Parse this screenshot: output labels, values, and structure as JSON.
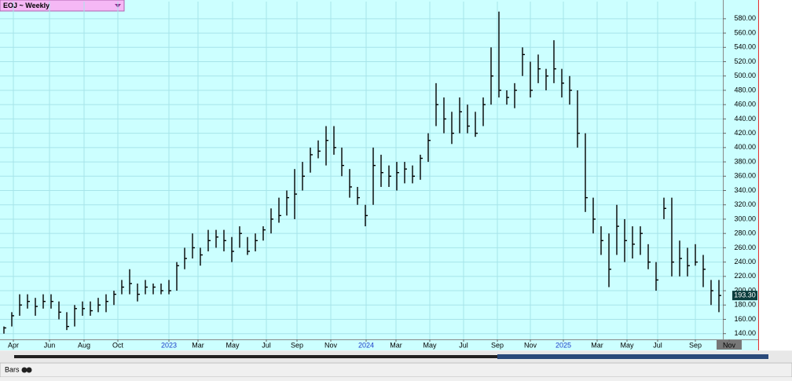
{
  "chart_data": {
    "type": "ohlc",
    "title": "EOJ ~ Weekly",
    "mode_label": "Bars",
    "color": "#000000",
    "grid": true,
    "x": [
      0,
      2,
      4,
      6,
      8,
      10,
      12,
      14,
      16,
      18,
      20,
      22,
      24,
      26,
      28,
      30,
      32,
      34,
      36,
      38,
      40,
      42,
      44,
      46,
      48,
      50,
      52,
      54,
      56,
      58,
      60,
      62,
      64,
      66,
      68,
      70,
      72,
      74,
      76,
      78,
      80,
      82,
      84,
      86,
      88,
      90,
      92,
      94,
      96,
      98,
      100,
      102,
      104,
      106,
      108,
      110,
      112,
      114,
      116,
      118,
      120,
      122,
      124,
      126,
      128,
      130,
      132,
      134,
      136,
      138,
      140,
      142,
      144,
      146,
      148,
      150,
      152,
      154,
      156,
      158,
      160,
      162,
      164,
      166,
      168,
      170,
      172,
      174,
      176,
      178,
      180,
      182
    ],
    "high": [
      150,
      170,
      195,
      195,
      190,
      195,
      195,
      185,
      170,
      180,
      185,
      185,
      190,
      195,
      200,
      215,
      230,
      210,
      215,
      210,
      210,
      215,
      240,
      260,
      280,
      260,
      285,
      285,
      285,
      275,
      290,
      275,
      280,
      290,
      315,
      330,
      340,
      370,
      380,
      400,
      410,
      430,
      430,
      400,
      370,
      345,
      320,
      400,
      390,
      375,
      380,
      380,
      375,
      390,
      420,
      490,
      470,
      450,
      470,
      460,
      450,
      470,
      540,
      590,
      480,
      490,
      540,
      520,
      530,
      510,
      550,
      510,
      500,
      480,
      420,
      330,
      290,
      280,
      320,
      300,
      290,
      290,
      265,
      240,
      330,
      330,
      270,
      260,
      265,
      250,
      215,
      215
    ],
    "low": [
      140,
      150,
      165,
      175,
      165,
      175,
      175,
      160,
      145,
      150,
      165,
      165,
      170,
      170,
      180,
      195,
      195,
      185,
      195,
      195,
      195,
      195,
      200,
      230,
      245,
      235,
      255,
      260,
      255,
      240,
      260,
      250,
      255,
      270,
      280,
      295,
      305,
      300,
      340,
      365,
      385,
      375,
      390,
      360,
      330,
      320,
      290,
      320,
      345,
      345,
      340,
      350,
      350,
      355,
      380,
      430,
      420,
      405,
      420,
      420,
      415,
      430,
      460,
      470,
      460,
      455,
      500,
      470,
      490,
      480,
      490,
      470,
      460,
      400,
      310,
      280,
      250,
      205,
      250,
      240,
      245,
      250,
      230,
      200,
      300,
      220,
      220,
      220,
      235,
      205,
      180,
      170
    ],
    "close": [
      148,
      165,
      180,
      185,
      178,
      185,
      185,
      170,
      150,
      175,
      175,
      172,
      180,
      185,
      195,
      205,
      210,
      195,
      205,
      205,
      200,
      200,
      235,
      245,
      260,
      250,
      270,
      275,
      270,
      255,
      280,
      255,
      270,
      285,
      300,
      305,
      330,
      335,
      360,
      390,
      395,
      410,
      400,
      375,
      345,
      330,
      305,
      375,
      365,
      360,
      365,
      370,
      360,
      385,
      410,
      460,
      440,
      420,
      450,
      430,
      420,
      460,
      500,
      480,
      470,
      480,
      530,
      480,
      510,
      500,
      510,
      490,
      480,
      420,
      330,
      300,
      270,
      230,
      290,
      270,
      265,
      280,
      240,
      215,
      315,
      240,
      245,
      235,
      240,
      230,
      200,
      193.3
    ],
    "last_value_label": "193.30",
    "xlim": [
      -1,
      183
    ],
    "xticks": [
      {
        "value": 2.4,
        "label": "Apr"
      },
      {
        "value": 11.6,
        "label": "Jun"
      },
      {
        "value": 20.4,
        "label": "Aug"
      },
      {
        "value": 29,
        "label": "Oct"
      },
      {
        "value": 42,
        "label": "2023"
      },
      {
        "value": 49.4,
        "label": "Mar"
      },
      {
        "value": 58.2,
        "label": "May"
      },
      {
        "value": 66.8,
        "label": "Jul"
      },
      {
        "value": 74.6,
        "label": "Sep"
      },
      {
        "value": 83.2,
        "label": "Nov"
      },
      {
        "value": 92.2,
        "label": "2024"
      },
      {
        "value": 99.8,
        "label": "Mar"
      },
      {
        "value": 108.4,
        "label": "May"
      },
      {
        "value": 117,
        "label": "Jul"
      },
      {
        "value": 125.6,
        "label": "Sep"
      },
      {
        "value": 134,
        "label": "Nov"
      },
      {
        "value": 142.4,
        "label": "2025"
      },
      {
        "value": 151,
        "label": "Mar"
      },
      {
        "value": 158.6,
        "label": "May"
      },
      {
        "value": 166.4,
        "label": "Jul"
      },
      {
        "value": 176,
        "label": "Sep"
      },
      {
        "value": 184.6,
        "label": "Nov"
      }
    ],
    "ylim": [
      132,
      604
    ],
    "yticks": [
      {
        "value": 140,
        "label": "140.00"
      },
      {
        "value": 160,
        "label": "160.00"
      },
      {
        "value": 180,
        "label": "180.00"
      },
      {
        "value": 200,
        "label": "200.00"
      },
      {
        "value": 220,
        "label": "220.00"
      },
      {
        "value": 240,
        "label": "240.00"
      },
      {
        "value": 260,
        "label": "260.00"
      },
      {
        "value": 280,
        "label": "280.00"
      },
      {
        "value": 300,
        "label": "300.00"
      },
      {
        "value": 320,
        "label": "320.00"
      },
      {
        "value": 340,
        "label": "340.00"
      },
      {
        "value": 360,
        "label": "360.00"
      },
      {
        "value": 380,
        "label": "380.00"
      },
      {
        "value": 400,
        "label": "400.00"
      },
      {
        "value": 420,
        "label": "420.00"
      },
      {
        "value": 440,
        "label": "440.00"
      },
      {
        "value": 460,
        "label": "460.00"
      },
      {
        "value": 480,
        "label": "480.00"
      },
      {
        "value": 500,
        "label": "500.00"
      },
      {
        "value": 520,
        "label": "520.00"
      },
      {
        "value": 540,
        "label": "540.00"
      },
      {
        "value": 560,
        "label": "560.00"
      },
      {
        "value": 580,
        "label": "580.00"
      }
    ]
  }
}
